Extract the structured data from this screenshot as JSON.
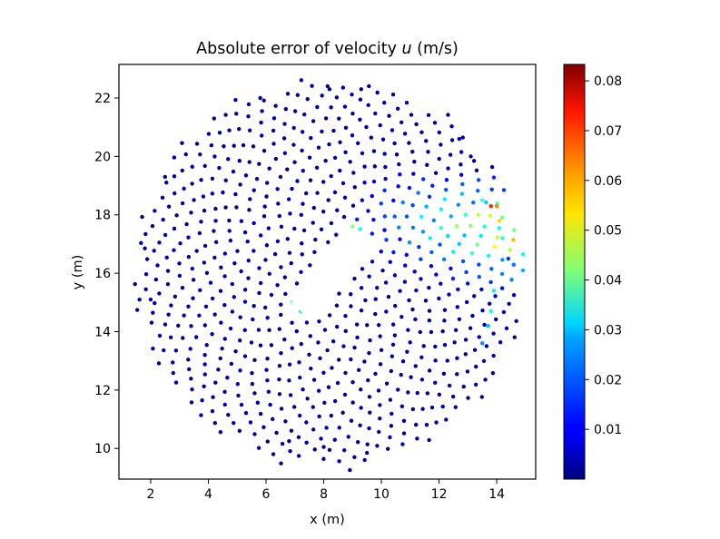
{
  "chart_data": {
    "type": "scatter",
    "title": "Absolute error of velocity u (m/s)",
    "title_parts": {
      "prefix": "Absolute error of velocity ",
      "variable": "u",
      "suffix": " (m/s)"
    },
    "xlabel": "x (m)",
    "ylabel": "y (m)",
    "xlim": [
      0.9,
      15.35
    ],
    "ylim": [
      8.95,
      23.15
    ],
    "xticks": [
      2,
      4,
      6,
      8,
      10,
      12,
      14
    ],
    "yticks": [
      10,
      12,
      14,
      16,
      18,
      20,
      22
    ],
    "xtick_labels": [
      "2",
      "4",
      "6",
      "8",
      "10",
      "12",
      "14"
    ],
    "ytick_labels": [
      "10",
      "12",
      "14",
      "16",
      "18",
      "20",
      "22"
    ],
    "grid": false,
    "colormap": "jet",
    "colorbar": {
      "min": 0.0,
      "max": 0.0833,
      "ticks": [
        0.01,
        0.02,
        0.03,
        0.04,
        0.05,
        0.06,
        0.07,
        0.08
      ],
      "tick_labels": [
        "0.01",
        "0.02",
        "0.03",
        "0.04",
        "0.05",
        "0.06",
        "0.07",
        "0.08"
      ]
    },
    "domain_center": [
      8.2,
      16.0
    ],
    "obstacle": {
      "shape": "rectangle",
      "center": [
        8.2,
        15.95
      ],
      "length": 3.2,
      "width": 0.9,
      "angle_deg": 52
    },
    "wake_error": {
      "note": "elevated error downstream of obstacle toward upper right",
      "max_error": 0.083,
      "location": [
        13.9,
        18.3
      ]
    },
    "points": [
      {
        "x": 8.2,
        "y": 22.3,
        "err": 0.002
      },
      {
        "x": 9.3,
        "y": 22.3,
        "err": 0.002
      },
      {
        "x": 12.7,
        "y": 20.6,
        "err": 0.003
      },
      {
        "x": 13.1,
        "y": 20.0,
        "err": 0.003
      },
      {
        "x": 13.5,
        "y": 18.5,
        "err": 0.035
      },
      {
        "x": 13.8,
        "y": 18.3,
        "err": 0.07
      },
      {
        "x": 14.0,
        "y": 18.3,
        "err": 0.062
      },
      {
        "x": 14.1,
        "y": 17.8,
        "err": 0.055
      },
      {
        "x": 14.2,
        "y": 17.2,
        "err": 0.035
      },
      {
        "x": 14.4,
        "y": 16.5,
        "err": 0.015
      },
      {
        "x": 13.9,
        "y": 15.4,
        "err": 0.03
      },
      {
        "x": 13.8,
        "y": 14.7,
        "err": 0.032
      },
      {
        "x": 13.7,
        "y": 14.2,
        "err": 0.026
      },
      {
        "x": 13.5,
        "y": 13.6,
        "err": 0.022
      },
      {
        "x": 9.5,
        "y": 9.85,
        "err": 0.003
      },
      {
        "x": 8.0,
        "y": 10.05,
        "err": 0.003
      },
      {
        "x": 6.8,
        "y": 10.25,
        "err": 0.002
      },
      {
        "x": 1.8,
        "y": 16.85,
        "err": 0.002
      },
      {
        "x": 2.0,
        "y": 15.1,
        "err": 0.002
      },
      {
        "x": 2.5,
        "y": 19.3,
        "err": 0.002
      },
      {
        "x": 4.2,
        "y": 21.3,
        "err": 0.002
      },
      {
        "x": 5.8,
        "y": 22.0,
        "err": 0.002
      },
      {
        "x": 8.8,
        "y": 17.3,
        "err": 0.05
      },
      {
        "x": 9.0,
        "y": 17.6,
        "err": 0.043
      },
      {
        "x": 6.9,
        "y": 15.0,
        "err": 0.038
      },
      {
        "x": 7.2,
        "y": 14.7,
        "err": 0.03
      }
    ]
  }
}
